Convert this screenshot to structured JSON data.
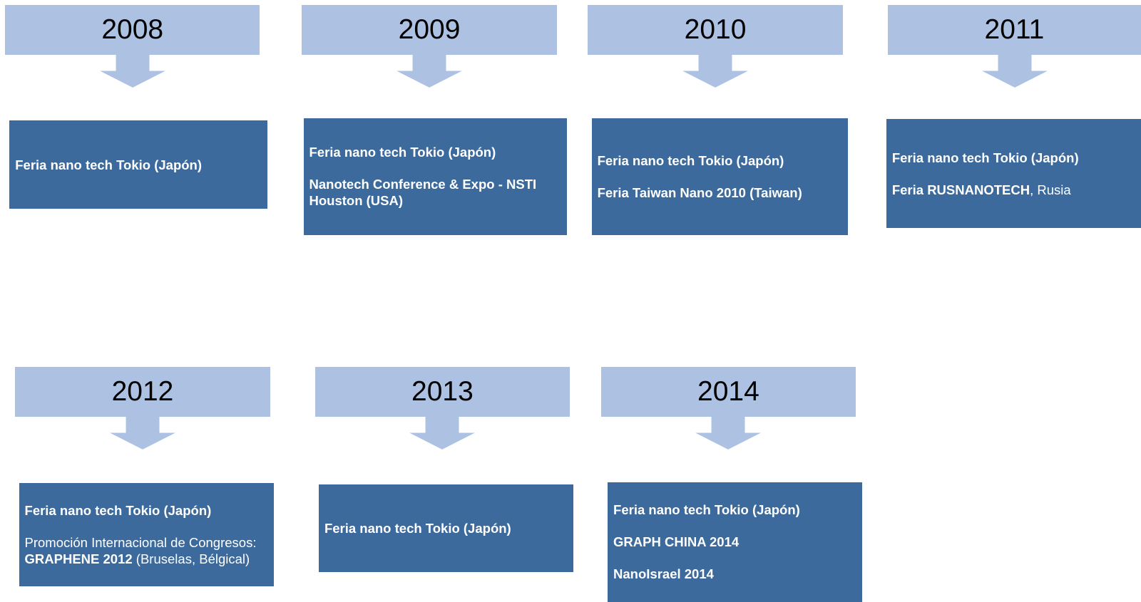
{
  "timeline": [
    {
      "year": "2008",
      "events": [
        [
          {
            "text": "Feria nano tech Tokio (Japón)",
            "bold": true
          }
        ]
      ]
    },
    {
      "year": "2009",
      "events": [
        [
          {
            "text": "Feria nano tech Tokio (Japón)",
            "bold": true
          }
        ],
        [
          {
            "text": "Nanotech Conference & Expo - NSTI Houston (USA)",
            "bold": true
          }
        ]
      ]
    },
    {
      "year": "2010",
      "events": [
        [
          {
            "text": "Feria nano tech Tokio (Japón)",
            "bold": true
          }
        ],
        [
          {
            "text": "Feria Taiwan Nano 2010 (Taiwan)",
            "bold": true
          }
        ]
      ]
    },
    {
      "year": "2011",
      "events": [
        [
          {
            "text": "Feria nano tech Tokio (Japón)",
            "bold": true
          }
        ],
        [
          {
            "text": "Feria RUSNANOTECH",
            "bold": true
          },
          {
            "text": ", Rusia",
            "bold": false
          }
        ]
      ]
    },
    {
      "year": "2012",
      "events": [
        [
          {
            "text": "Feria nano tech Tokio (Japón)",
            "bold": true
          }
        ],
        [
          {
            "text": "Promoción Internacional de Congresos: ",
            "bold": false
          },
          {
            "text": "GRAPHENE 2012",
            "bold": true
          },
          {
            "text": " (Bruselas, Bélgical)",
            "bold": false
          }
        ]
      ]
    },
    {
      "year": "2013",
      "events": [
        [
          {
            "text": "Feria nano tech Tokio (Japón)",
            "bold": true
          }
        ]
      ]
    },
    {
      "year": "2014",
      "events": [
        [
          {
            "text": "Feria nano tech Tokio (Japón)",
            "bold": true
          }
        ],
        [
          {
            "text": "GRAPH CHINA 2014",
            "bold": true
          }
        ],
        [
          {
            "text": "NanoIsrael 2014",
            "bold": true
          }
        ]
      ]
    }
  ]
}
